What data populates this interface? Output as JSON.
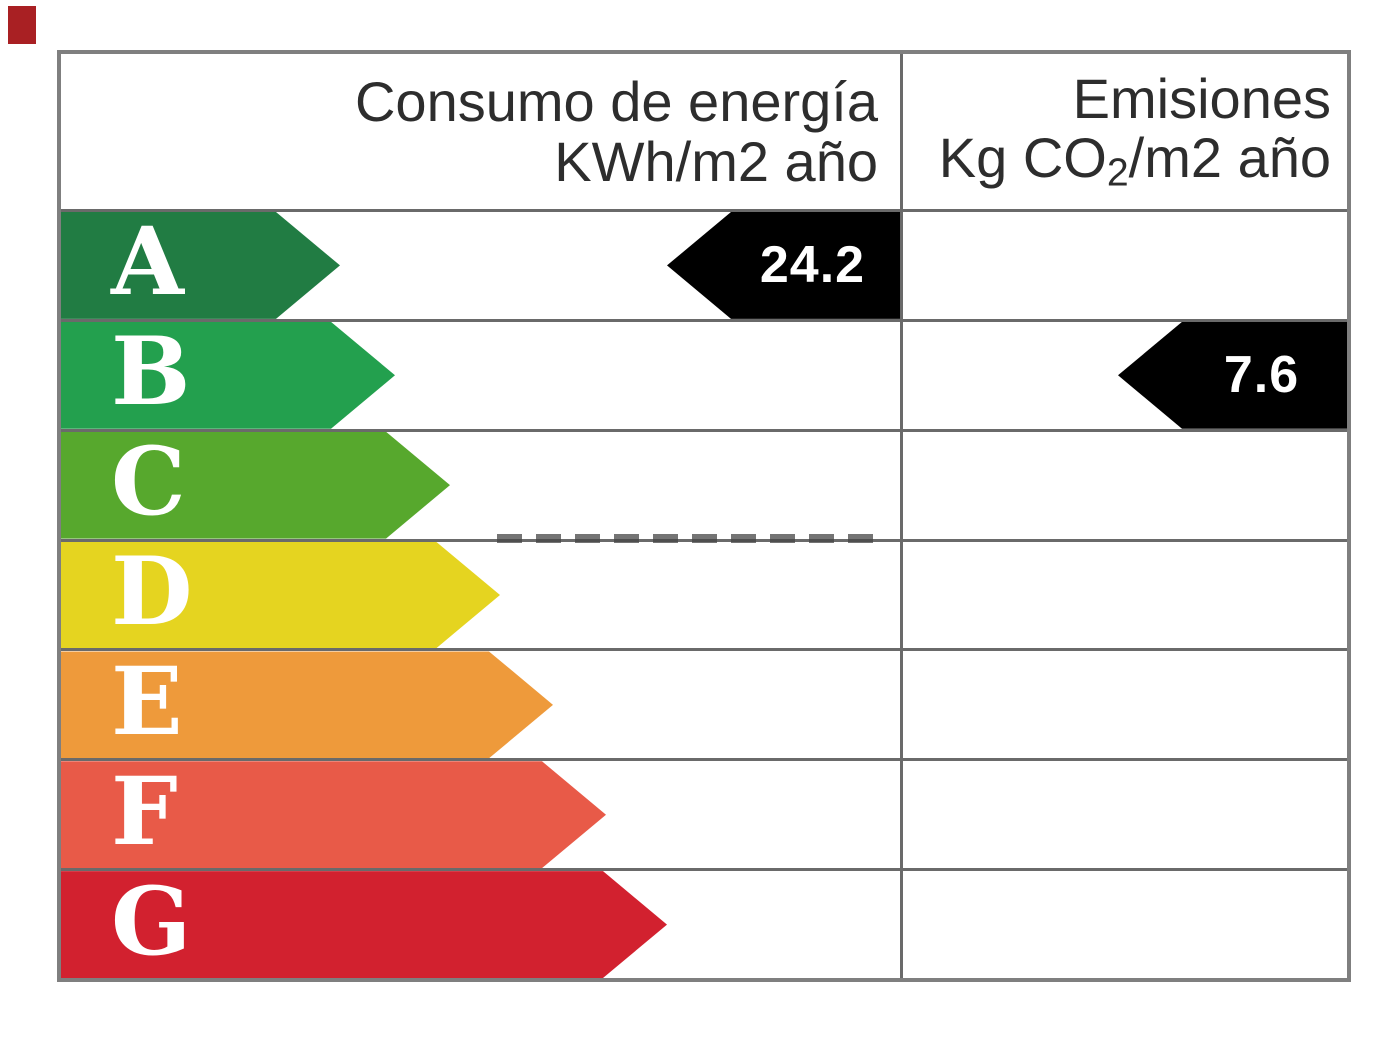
{
  "header": {
    "consumption": {
      "line1": "Consumo de energía",
      "line2": "KWh/m2 año"
    },
    "emissions": {
      "line1": "Emisiones",
      "line2_pre": "Kg CO",
      "line2_sub": "2",
      "line2_post": "/m2 año"
    }
  },
  "bands": [
    {
      "letter": "A",
      "color": "#217c43"
    },
    {
      "letter": "B",
      "color": "#23a04e"
    },
    {
      "letter": "C",
      "color": "#57a82d"
    },
    {
      "letter": "D",
      "color": "#e5d420"
    },
    {
      "letter": "E",
      "color": "#ee9a3b"
    },
    {
      "letter": "F",
      "color": "#e85a48"
    },
    {
      "letter": "G",
      "color": "#d2212f"
    }
  ],
  "ratings": {
    "consumption": {
      "value": "24.2",
      "band": "A",
      "arrow_color": "#000000",
      "text_color": "#ffffff"
    },
    "emissions": {
      "value": "7.6",
      "band": "B",
      "arrow_color": "#000000",
      "text_color": "#ffffff"
    }
  },
  "decor": {
    "red_marker_color": "#a92023",
    "outer_border_color": "#7f7f7f",
    "gridline_color": "#6a6a6a"
  },
  "chart_data": {
    "type": "table",
    "title": "",
    "columns": [
      "Consumo de energía KWh/m2 año",
      "Emisiones Kg CO2/m2 año"
    ],
    "categories": [
      "A",
      "B",
      "C",
      "D",
      "E",
      "F",
      "G"
    ],
    "band_colors": [
      "#217c43",
      "#23a04e",
      "#57a82d",
      "#e5d420",
      "#ee9a3b",
      "#e85a48",
      "#d2212f"
    ],
    "series": [
      {
        "name": "Consumo de energía KWh/m2 año",
        "band": "A",
        "value": 24.2
      },
      {
        "name": "Emisiones Kg CO2/m2 año",
        "band": "B",
        "value": 7.6
      }
    ],
    "legend_position": "none",
    "grid": true
  }
}
